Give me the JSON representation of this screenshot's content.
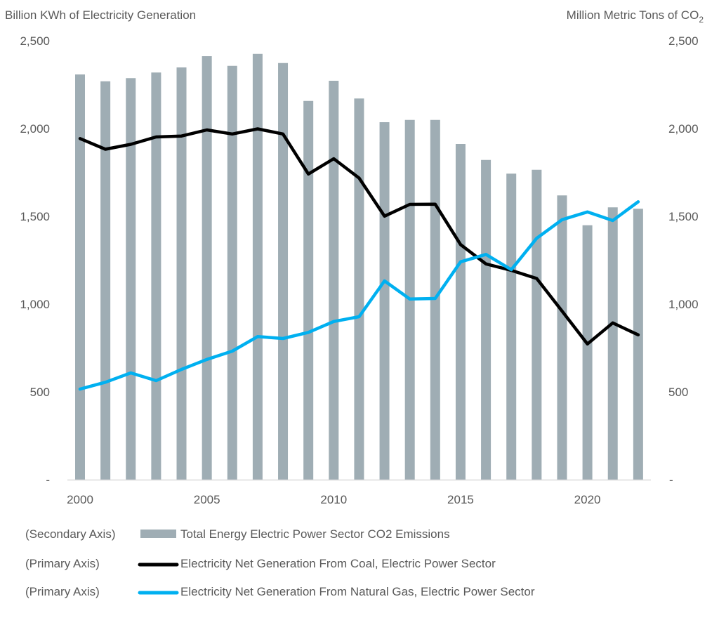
{
  "chart_data": {
    "type": "bar+line",
    "title": "",
    "left_axis_title": "Billion KWh of Electricity Generation",
    "right_axis_title_main": "Million Metric Tons of CO",
    "right_axis_title_sub": "2",
    "xlabel": "",
    "x": [
      2000,
      2001,
      2002,
      2003,
      2004,
      2005,
      2006,
      2007,
      2008,
      2009,
      2010,
      2011,
      2012,
      2013,
      2014,
      2015,
      2016,
      2017,
      2018,
      2019,
      2020,
      2021,
      2022
    ],
    "x_tick_labels": [
      "2000",
      "2005",
      "2010",
      "2015",
      "2020"
    ],
    "x_tick_years": [
      2000,
      2005,
      2010,
      2015,
      2020
    ],
    "left_ylim": [
      0,
      2500
    ],
    "right_ylim": [
      0,
      2500
    ],
    "left_tick_labels": [
      "-",
      "500",
      "1,000",
      "1,500",
      "2,000",
      "2,500"
    ],
    "right_tick_labels": [
      "-",
      "500",
      "1,000",
      "1,500",
      "2,000",
      "2,500"
    ],
    "tick_values": [
      0,
      500,
      1000,
      1500,
      2000,
      2500
    ],
    "grid": false,
    "legend_position": "bottom",
    "series": [
      {
        "name": "Total Energy Electric Power Sector CO2 Emissions",
        "axis_label": "(Secondary Axis)",
        "axis": "right",
        "type": "bar",
        "color": "#9fadb4",
        "values": [
          2308,
          2269,
          2287,
          2319,
          2348,
          2412,
          2357,
          2425,
          2373,
          2157,
          2272,
          2171,
          2036,
          2049,
          2049,
          1912,
          1821,
          1743,
          1765,
          1619,
          1449,
          1551,
          1543
        ]
      },
      {
        "name": "Electricity Net Generation From Coal, Electric Power Sector",
        "axis_label": "(Primary Axis)",
        "axis": "left",
        "type": "line",
        "color": "#000000",
        "values": [
          1943,
          1882,
          1910,
          1952,
          1957,
          1992,
          1969,
          1998,
          1969,
          1741,
          1828,
          1718,
          1501,
          1568,
          1569,
          1339,
          1229,
          1192,
          1146,
          960,
          773,
          893,
          825
        ]
      },
      {
        "name": "Electricity Net Generation From Natural Gas, Electric Power Sector",
        "axis_label": "(Primary Axis)",
        "axis": "left",
        "type": "line",
        "color": "#00b0f0",
        "values": [
          516,
          555,
          608,
          564,
          628,
          685,
          732,
          815,
          804,
          839,
          901,
          928,
          1132,
          1029,
          1032,
          1241,
          1283,
          1196,
          1375,
          1481,
          1525,
          1476,
          1583
        ]
      }
    ]
  }
}
